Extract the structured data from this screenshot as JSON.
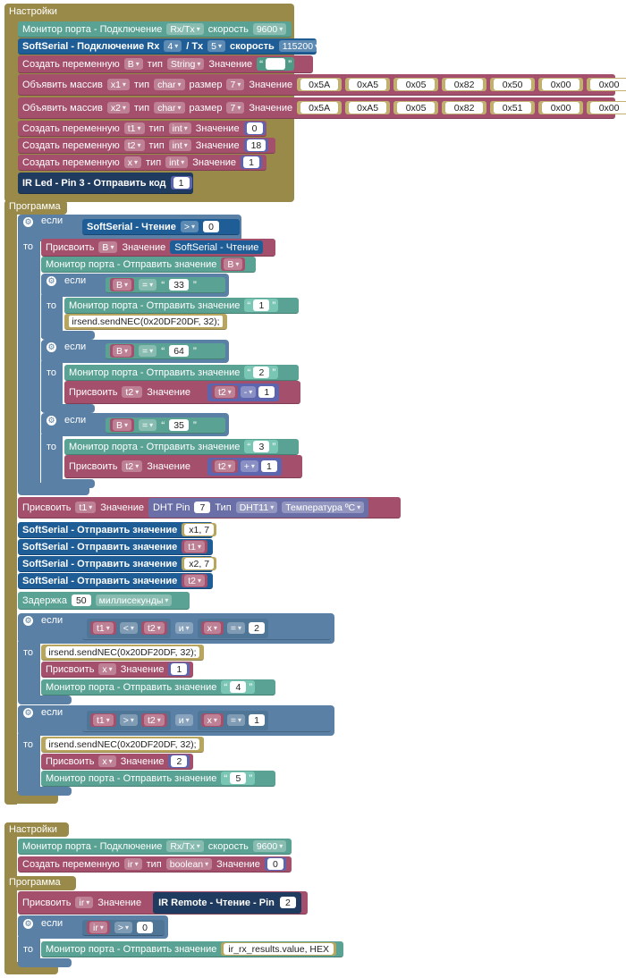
{
  "sections": {
    "settings": "Настройки",
    "program": "Программа"
  },
  "kw": {
    "if": "если",
    "then": "то",
    "and": "и"
  },
  "s1": {
    "serial_label": "Монитор порта - Подключение",
    "serial_port": "Rx/Tx",
    "speed_label": "скорость",
    "serial_speed": "9600",
    "soft_label": "SoftSerial - Подключение  Rx",
    "soft_rx": "4",
    "soft_tx_label": "/ Tx",
    "soft_tx": "5",
    "soft_speed_label": "скорость",
    "soft_speed": "115200",
    "var_b": {
      "label": "Создать переменную",
      "name": "B",
      "type_label": "тип",
      "type": "String",
      "value_label": "Значение",
      "value": ""
    },
    "arr1": {
      "label": "Объявить массив",
      "name": "x1",
      "type_label": "тип",
      "type": "char",
      "size_label": "размер",
      "size": "7",
      "value_label": "Значение",
      "values": [
        "0x5A",
        "0xA5",
        "0x05",
        "0x82",
        "0x50",
        "0x00",
        "0x00"
      ]
    },
    "arr2": {
      "label": "Объявить массив",
      "name": "x2",
      "type_label": "тип",
      "type": "char",
      "size_label": "размер",
      "size": "7",
      "value_label": "Значение",
      "values": [
        "0x5A",
        "0xA5",
        "0x05",
        "0x82",
        "0x51",
        "0x00",
        "0x00"
      ]
    },
    "var_t1": {
      "label": "Создать переменную",
      "name": "t1",
      "type_label": "тип",
      "type": "int",
      "value_label": "Значение",
      "value": "0"
    },
    "var_t2": {
      "label": "Создать переменную",
      "name": "t2",
      "type_label": "тип",
      "type": "int",
      "value_label": "Значение",
      "value": "18"
    },
    "var_x": {
      "label": "Создать переменную",
      "name": "x",
      "type_label": "тип",
      "type": "int",
      "value_label": "Значение",
      "value": "1"
    },
    "irled": {
      "label": "IR Led - Pin 3 - Отправить код",
      "value": "1"
    }
  },
  "p1": {
    "if1": {
      "left": "SoftSerial - Чтение",
      "op": ">",
      "right": "0"
    },
    "assign_b": {
      "label": "Присвоить",
      "var": "B",
      "value_label": "Значение",
      "source": "SoftSerial - Чтение"
    },
    "print_b": {
      "label": "Монитор порта - Отправить значение",
      "var": "B"
    },
    "c1": {
      "var": "B",
      "op": "=",
      "str": "33",
      "print_label": "Монитор порта - Отправить значение",
      "print_str": "1",
      "code": "irsend.sendNEC(0x20DF20DF, 32);"
    },
    "c2": {
      "var": "B",
      "op": "=",
      "str": "64",
      "print_label": "Монитор порта - Отправить значение",
      "print_str": "2",
      "assign_label": "Присвоить",
      "assign_var": "t2",
      "value_label": "Значение",
      "math_var": "t2",
      "math_op": "-",
      "math_val": "1"
    },
    "c3": {
      "var": "B",
      "op": "=",
      "str": "35",
      "print_label": "Монитор порта - Отправить значение",
      "print_str": "3",
      "assign_label": "Присвоить",
      "assign_var": "t2",
      "value_label": "Значение",
      "math_var": "t2",
      "math_op": "+",
      "math_val": "1"
    },
    "assign_t1": {
      "label": "Присвоить",
      "var": "t1",
      "value_label": "Значение",
      "dht_label": "DHT  Pin",
      "pin": "7",
      "type_label": "Тип",
      "type": "DHT11",
      "measure": "Температура ºC"
    },
    "ss_send": [
      {
        "label": "SoftSerial - Отправить значение",
        "value": "x1, 7"
      },
      {
        "label": "SoftSerial - Отправить значение",
        "value": "t1"
      },
      {
        "label": "SoftSerial - Отправить значение",
        "value": "x2, 7"
      },
      {
        "label": "SoftSerial - Отправить значение",
        "value": "t2"
      }
    ],
    "delay": {
      "label": "Задержка",
      "value": "50",
      "unit": "миллисекунды"
    },
    "if2": {
      "a": "t1",
      "op1": "<",
      "b": "t2",
      "and": "и",
      "c": "x",
      "op2": "=",
      "d": "2",
      "code": "irsend.sendNEC(0x20DF20DF, 32);",
      "assign_label": "Присвоить",
      "assign_var": "x",
      "value_label": "Значение",
      "assign_val": "1",
      "print_label": "Монитор порта - Отправить значение",
      "print_str": "4"
    },
    "if3": {
      "a": "t1",
      "op1": ">",
      "b": "t2",
      "and": "и",
      "c": "x",
      "op2": "=",
      "d": "1",
      "code": "irsend.sendNEC(0x20DF20DF, 32);",
      "assign_label": "Присвоить",
      "assign_var": "x",
      "value_label": "Значение",
      "assign_val": "2",
      "print_label": "Монитор порта - Отправить значение",
      "print_str": "5"
    }
  },
  "s2": {
    "serial_label": "Монитор порта - Подключение",
    "serial_port": "Rx/Tx",
    "speed_label": "скорость",
    "serial_speed": "9600",
    "var_ir": {
      "label": "Создать переменную",
      "name": "ir",
      "type_label": "тип",
      "type": "boolean",
      "value_label": "Значение",
      "value": "0"
    }
  },
  "p2": {
    "assign_ir": {
      "label": "Присвоить",
      "var": "ir",
      "value_label": "Значение",
      "source": "IR Remote - Чтение - Pin",
      "pin": "2"
    },
    "if": {
      "var": "ir",
      "op": ">",
      "value": "0",
      "print_label": "Монитор порта - Отправить значение",
      "print_value": "ir_rx_results.value, HEX"
    }
  }
}
